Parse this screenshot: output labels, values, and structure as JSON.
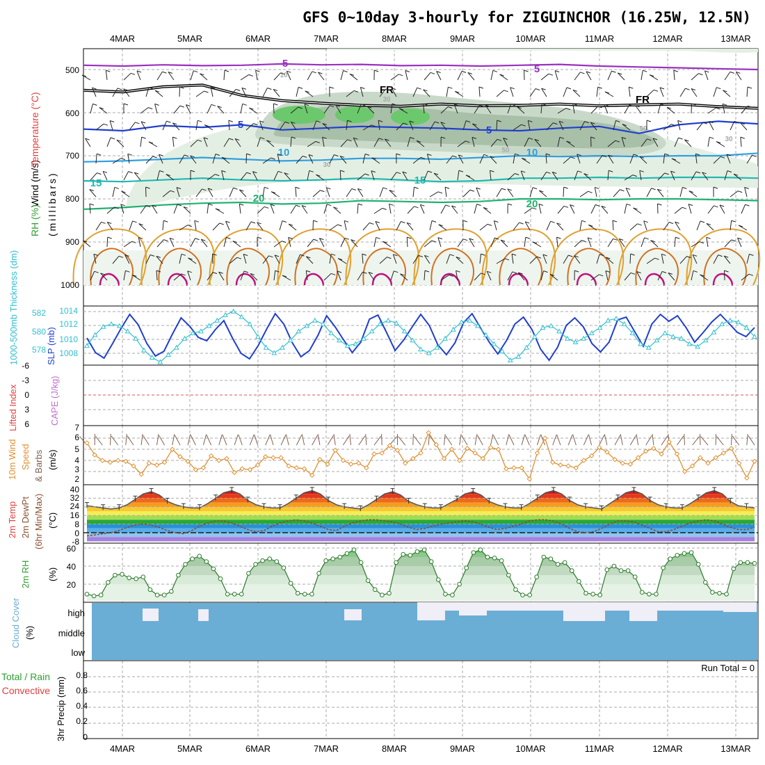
{
  "title": "GFS 0~10day 3-hourly for ZIGUINCHOR (16.25W, 12.5N)",
  "colors": {
    "grid": "#a9a9a9",
    "purple": "#9a30c0",
    "black": "#000000",
    "blue": "#1f3fd0",
    "skyblue": "#2fa0e0",
    "teal": "#20b8b0",
    "green": "#20b070",
    "orange": "#e0a030",
    "darkorange": "#d07020",
    "magenta": "#c01080",
    "slp": "#1f3fd0",
    "thick": "#30c0d0",
    "wind": "#e09030",
    "barb": "#806050",
    "rh": "#30a030",
    "cloud": "#6aaed6",
    "cloudgap": "#f0eef6",
    "redline": "#e05050"
  },
  "chart_data": [
    {
      "panel": "upper-air",
      "type": "line",
      "x_labels": [
        "4MAR",
        "5MAR",
        "6MAR",
        "7MAR",
        "8MAR",
        "9MAR",
        "10MAR",
        "11MAR",
        "12MAR",
        "13MAR"
      ],
      "y_ticks": [
        "500",
        "600",
        "700",
        "800",
        "900",
        "1000"
      ],
      "ylabel_parts": [
        "Wind (m/s)",
        "Temperature (°C)",
        "RH (%)",
        "(millibars)"
      ],
      "contour_labels": [
        "5",
        "5",
        "FR",
        "FR",
        "5",
        "5",
        "10",
        "10",
        "15",
        "15",
        "20",
        "20",
        "10",
        "30",
        "50",
        "30",
        "50",
        "30"
      ],
      "isotherms": [
        {
          "name": "-5",
          "color": "purple",
          "p": [
            490,
            492,
            489,
            491,
            490,
            487,
            489,
            488,
            491,
            490,
            492,
            490,
            488,
            492,
            494,
            496,
            498,
            500
          ]
        },
        {
          "name": "FR",
          "color": "black",
          "p": [
            548,
            552,
            540,
            536,
            560,
            572,
            578,
            583,
            585,
            580,
            584,
            583,
            580,
            584,
            582,
            580,
            586,
            590
          ]
        },
        {
          "name": "5",
          "color": "blue",
          "p": [
            638,
            642,
            630,
            634,
            628,
            640,
            636,
            632,
            634,
            636,
            640,
            642,
            636,
            632,
            648,
            628,
            620,
            626
          ]
        },
        {
          "name": "10",
          "color": "skyblue",
          "p": [
            714,
            712,
            708,
            704,
            708,
            712,
            710,
            706,
            706,
            708,
            704,
            700,
            702,
            700,
            702,
            700,
            700,
            694
          ]
        },
        {
          "name": "15",
          "color": "teal",
          "p": [
            758,
            760,
            756,
            752,
            756,
            758,
            756,
            752,
            756,
            760,
            758,
            752,
            752,
            750,
            752,
            750,
            750,
            752
          ]
        },
        {
          "name": "20",
          "color": "green",
          "p": [
            824,
            820,
            814,
            810,
            808,
            812,
            810,
            804,
            806,
            808,
            806,
            800,
            800,
            802,
            800,
            800,
            802,
            804
          ]
        }
      ]
    },
    {
      "panel": "slp-thickness",
      "type": "line",
      "ylabel_left": "1000-500mb Thickness (dm)",
      "ylabel_right": "SLP (mb)",
      "thickness_ticks": [
        "582",
        "580",
        "578"
      ],
      "slp_ticks": [
        "1014",
        "1012",
        "1010",
        "1008"
      ],
      "series": [
        {
          "name": "SLP",
          "unit": "mb",
          "values": [
            1010.2,
            1008.1,
            1007.3,
            1009.4,
            1011.6,
            1013.6,
            1012.1,
            1009.4,
            1007.6,
            1008.3,
            1010.8,
            1013.1,
            1011.9,
            1010.3,
            1009.8,
            1011.4,
            1012.7,
            1010.2,
            1008.0,
            1007.2,
            1009.1,
            1011.5,
            1013.7,
            1012.2,
            1009.5,
            1007.5,
            1008.4,
            1010.6,
            1013.4,
            1011.8,
            1009.9,
            1008.1,
            1009.6,
            1012.9,
            1013.5,
            1011.0,
            1008.4,
            1009.9,
            1011.8,
            1013.6,
            1012.0,
            1009.2,
            1007.8,
            1009.5,
            1012.4,
            1013.7,
            1011.6,
            1009.6,
            1007.9,
            1009.8,
            1012.2,
            1013.2,
            1011.4,
            1008.6,
            1007.0,
            1008.9,
            1012.0,
            1013.1,
            1011.8,
            1009.4,
            1008.2,
            1009.6,
            1012.8,
            1013.2,
            1011.1,
            1009.0,
            1012.2,
            1013.6,
            1012.6,
            1013.4,
            1011.7,
            1009.6,
            1011.0,
            1012.5,
            1013.6,
            1012.3,
            1011.0,
            1010.4,
            1011.7
          ]
        },
        {
          "name": "Thickness",
          "unit": "dm",
          "values": [
            578.8,
            580.0,
            580.9,
            581.2,
            581.0,
            580.4,
            579.6,
            578.3,
            577.5,
            577.0,
            577.8,
            578.6,
            579.6,
            580.2,
            580.4,
            581.0,
            581.6,
            582.2,
            582.6,
            582.0,
            581.2,
            579.8,
            578.6,
            578.0,
            578.6,
            579.4,
            580.4,
            581.0,
            581.6,
            581.2,
            580.2,
            579.4,
            578.8,
            579.0,
            579.6,
            580.4,
            581.2,
            581.6,
            581.3,
            580.4,
            579.4,
            578.4,
            578.0,
            578.6,
            579.6,
            580.6,
            581.4,
            581.6,
            581.0,
            580.0,
            579.0,
            578.2,
            577.2,
            577.6,
            578.6,
            579.8,
            580.8,
            581.0,
            580.4,
            579.6,
            579.2,
            579.6,
            580.2,
            580.8,
            581.6,
            581.8,
            581.2,
            580.2,
            579.0,
            578.6,
            579.4,
            580.2,
            579.8,
            579.6,
            579.0,
            578.7,
            579.4,
            580.3,
            581.2,
            581.6,
            581.4,
            580.8,
            579.8
          ]
        }
      ]
    },
    {
      "panel": "cape-li",
      "type": "line",
      "ylabel_left": "Lifted Index",
      "ylabel_right": "CAPE (J/kg)",
      "y_ticks": [
        "-6",
        "-3",
        "0",
        "3",
        "6"
      ]
    },
    {
      "panel": "wind10m",
      "type": "line",
      "ylabel_parts": [
        "10m Wind",
        "Speed",
        "& Barbs",
        "(m/s)"
      ],
      "y_ticks": [
        "7",
        "6",
        "5",
        "4",
        "3",
        "2"
      ],
      "series": [
        {
          "name": "10m Wind Speed",
          "values": [
            5.5,
            4.2,
            3.6,
            3.4,
            3.6,
            3.5,
            3.0,
            2.1,
            3.3,
            3.1,
            3.4,
            4.8,
            4.0,
            3.5,
            2.6,
            2.8,
            4.1,
            3.6,
            3.8,
            2.3,
            2.7,
            2.6,
            3.1,
            4.0,
            3.9,
            3.9,
            3.0,
            2.8,
            2.7,
            2.0,
            3.7,
            3.2,
            4.7,
            3.6,
            3.2,
            3.3,
            2.8,
            4.3,
            4.4,
            5.2,
            4.7,
            3.3,
            3.8,
            4.4,
            6.6,
            5.3,
            3.8,
            4.8,
            3.6,
            4.9,
            4.4,
            3.8,
            5.0,
            4.8,
            2.7,
            2.8,
            2.8,
            1.6,
            4.4,
            6.0,
            3.4,
            3.1,
            3.0,
            2.8,
            3.6,
            4.1,
            5.0,
            4.5,
            3.7,
            3.3,
            3.2,
            3.9,
            4.6,
            4.9,
            4.3,
            5.6,
            4.3,
            2.4,
            3.0,
            3.9,
            3.3,
            3.9,
            4.4,
            4.9,
            3.3,
            1.7,
            3.5
          ]
        }
      ]
    },
    {
      "panel": "temperature",
      "type": "area",
      "ylabel_parts": [
        "2m Temp",
        "2m DewPt",
        "(6hr Min/Max)",
        "(°C)"
      ],
      "y_ticks": [
        "40",
        "32",
        "24",
        "16",
        "8",
        "0",
        "-8"
      ],
      "series": [
        {
          "name": "2m Temp",
          "values": [
            25,
            24,
            23,
            22,
            23,
            26,
            31,
            36,
            38,
            35,
            29,
            26,
            24,
            23,
            23,
            27,
            32,
            37,
            39,
            36,
            30,
            26,
            24,
            23,
            23,
            27,
            32,
            37,
            39,
            36,
            30,
            26,
            24,
            23,
            22,
            26,
            31,
            36,
            38,
            35,
            29,
            26,
            24,
            23,
            23,
            27,
            31,
            36,
            38,
            35,
            29,
            26,
            24,
            23,
            23,
            27,
            32,
            37,
            39,
            36,
            30,
            26,
            24,
            23,
            22,
            27,
            32,
            37,
            39,
            36,
            30,
            26,
            24,
            23,
            23,
            27,
            32,
            37,
            39,
            36,
            29,
            25,
            24,
            23
          ]
        },
        {
          "name": "2m DewPt",
          "values": [
            -3,
            -2,
            -1,
            0,
            2,
            5,
            7,
            8,
            7,
            5,
            2,
            0,
            -1,
            2,
            6,
            9,
            11,
            11,
            9,
            6,
            3,
            1,
            2,
            6,
            9,
            11,
            12,
            11,
            9,
            6,
            3,
            2,
            6,
            9,
            11,
            12,
            12,
            11,
            10,
            8,
            5,
            3,
            4,
            6,
            8,
            9,
            10,
            11,
            10,
            8,
            5,
            3,
            4,
            6,
            8,
            11,
            12,
            12,
            11,
            8,
            4,
            1,
            0,
            1,
            4,
            8,
            11,
            11,
            10,
            7,
            4,
            1,
            1,
            3,
            6,
            9,
            11,
            12,
            11,
            8,
            5,
            3,
            3,
            5
          ]
        }
      ]
    },
    {
      "panel": "rh2m",
      "type": "area",
      "ylabel_parts": [
        "2m RH",
        "(%)"
      ],
      "y_ticks": [
        "60",
        "40",
        "20"
      ],
      "series": [
        {
          "name": "2m RH",
          "values": [
            9,
            7,
            8,
            22,
            30,
            31,
            27,
            26,
            28,
            14,
            8,
            8,
            12,
            30,
            42,
            48,
            51,
            45,
            37,
            26,
            9,
            9,
            9,
            32,
            42,
            46,
            48,
            45,
            38,
            21,
            10,
            9,
            9,
            32,
            46,
            48,
            50,
            54,
            58,
            44,
            24,
            14,
            8,
            10,
            44,
            53,
            52,
            56,
            58,
            45,
            25,
            9,
            8,
            20,
            38,
            55,
            58,
            50,
            49,
            46,
            30,
            14,
            8,
            8,
            28,
            50,
            48,
            42,
            44,
            35,
            23,
            10,
            9,
            8,
            36,
            40,
            35,
            35,
            28,
            11,
            9,
            9,
            38,
            48,
            52,
            54,
            55,
            42,
            22,
            11,
            10,
            9,
            37,
            44,
            44,
            43
          ]
        }
      ]
    },
    {
      "panel": "cloud-cover",
      "type": "area",
      "ylabel_parts": [
        "Cloud Cover",
        "(%)"
      ],
      "level_labels": [
        "high",
        "middle",
        "low"
      ]
    },
    {
      "panel": "precip",
      "type": "bar",
      "ylabel_parts": [
        "Total / Rain",
        "Convective",
        "3hr Precip (mm)"
      ],
      "y_ticks": [
        "0.8",
        "0.6",
        "0.4",
        "0.2",
        "0"
      ],
      "run_total_label": "Run Total = 0",
      "values": []
    }
  ]
}
